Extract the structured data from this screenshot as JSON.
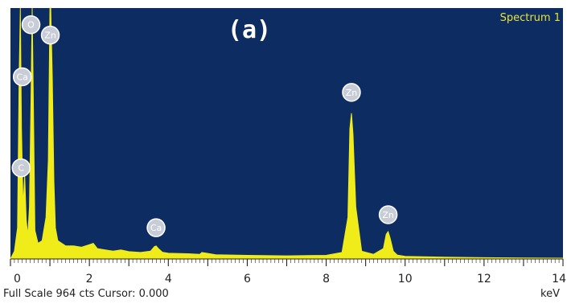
{
  "panel_label": "(a)",
  "status": {
    "full_scale": "Full Scale 964 cts Cursor: 0.000",
    "unit": "keV"
  },
  "colors": {
    "plot_background": "#0d2c62",
    "spectrum": "#f0ec1a",
    "legend_text": "#e6e23a",
    "marker_fill": "#c7ccd6",
    "marker_text": "#ffffff"
  },
  "chart_data": {
    "type": "area",
    "title": "",
    "xlabel": "keV",
    "ylabel": "",
    "xlim": [
      0,
      14
    ],
    "ylim": [
      0,
      964
    ],
    "x_ticks": [
      "0",
      "2",
      "4",
      "6",
      "8",
      "10",
      "12",
      "14"
    ],
    "grid": false,
    "legend": {
      "placement": "top-right",
      "entries": [
        "Spectrum 1"
      ]
    },
    "series": [
      {
        "name": "Spectrum 1",
        "x": [
          0.0,
          0.1,
          0.18,
          0.22,
          0.25,
          0.28,
          0.32,
          0.36,
          0.4,
          0.44,
          0.48,
          0.52,
          0.55,
          0.58,
          0.62,
          0.7,
          0.8,
          0.9,
          0.96,
          1.0,
          1.02,
          1.06,
          1.1,
          1.14,
          1.2,
          1.4,
          1.6,
          1.8,
          2.0,
          2.1,
          2.2,
          2.4,
          2.6,
          2.8,
          3.0,
          3.3,
          3.55,
          3.65,
          3.69,
          3.75,
          3.85,
          4.0,
          4.5,
          4.8,
          4.85,
          5.2,
          6.0,
          7.0,
          8.0,
          8.4,
          8.55,
          8.6,
          8.64,
          8.68,
          8.75,
          8.9,
          9.2,
          9.45,
          9.52,
          9.57,
          9.62,
          9.7,
          9.8,
          10.0,
          11.0,
          12.0,
          13.0,
          14.0
        ],
        "y": [
          0,
          30,
          120,
          700,
          964,
          500,
          200,
          320,
          150,
          90,
          200,
          600,
          964,
          600,
          110,
          60,
          70,
          160,
          380,
          964,
          964,
          700,
          300,
          120,
          70,
          50,
          50,
          45,
          55,
          60,
          40,
          35,
          30,
          35,
          28,
          25,
          30,
          48,
          50,
          40,
          26,
          22,
          20,
          18,
          25,
          16,
          14,
          12,
          14,
          25,
          160,
          500,
          560,
          480,
          200,
          30,
          18,
          40,
          95,
          105,
          80,
          30,
          15,
          10,
          7,
          5,
          4,
          3
        ]
      }
    ],
    "annotations": [
      {
        "label": "O",
        "x": 0.52,
        "y": 900
      },
      {
        "label": "Zn",
        "x": 1.01,
        "y": 860
      },
      {
        "label": "Ca",
        "x": 0.3,
        "y": 700
      },
      {
        "label": "C",
        "x": 0.27,
        "y": 350
      },
      {
        "label": "Ca",
        "x": 3.69,
        "y": 120
      },
      {
        "label": "Zn",
        "x": 8.64,
        "y": 640
      },
      {
        "label": "Zn",
        "x": 9.57,
        "y": 170
      }
    ]
  }
}
